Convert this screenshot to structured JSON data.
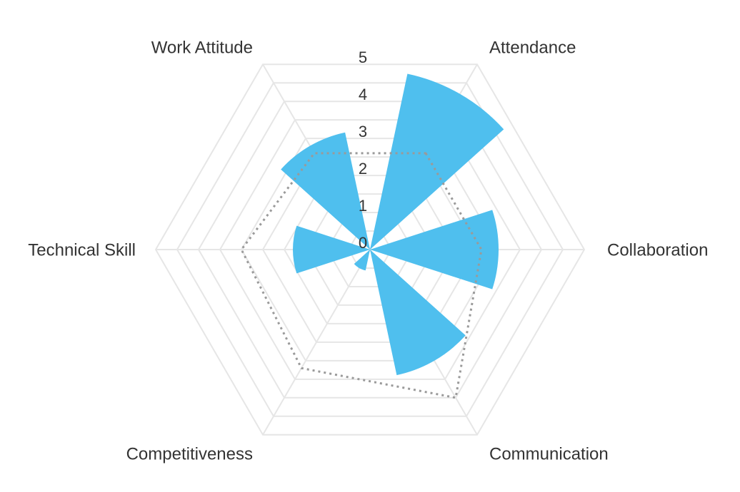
{
  "chart_data": {
    "type": "polar-bar",
    "categories": [
      "Attendance",
      "Collaboration",
      "Communication",
      "Competitiveness",
      "Technical Skill",
      "Work Attitude"
    ],
    "axis_labels": [
      "Attendance",
      "Collaboration",
      "Communication",
      "Competitiveness",
      "Technical Skill",
      "Work Attitude"
    ],
    "series": [
      {
        "values": [
          4.2,
          3.0,
          3.0,
          0.5,
          1.8,
          2.8
        ],
        "color": "#4fbfee",
        "style": "petal"
      },
      {
        "values": [
          2.6,
          2.6,
          4.0,
          3.2,
          3.0,
          2.6
        ],
        "color": "#9a9a9a",
        "style": "dotted-line"
      }
    ],
    "r_range": [
      0,
      5
    ],
    "r_ticks": [
      "0",
      "1",
      "2",
      "3",
      "4",
      "5"
    ],
    "grid": true,
    "grid_shape": "hexagon",
    "legend": false
  }
}
